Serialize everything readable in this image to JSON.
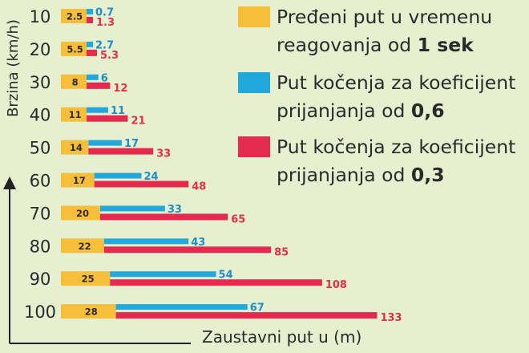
{
  "chart_data": {
    "type": "bar",
    "ylabel": "Brzina (km/h)",
    "xlabel": "Zaustavni put u (m)",
    "categories": [
      "10",
      "20",
      "30",
      "40",
      "50",
      "60",
      "70",
      "80",
      "90",
      "100"
    ],
    "series": [
      {
        "name": "Pređeni put u vremenu reagovanja od 1 sek",
        "color": "#f7be3a",
        "values": [
          "2.5",
          "5.5",
          "8",
          "11",
          "14",
          "17",
          "20",
          "22",
          "25",
          "28"
        ]
      },
      {
        "name": "Put kočenja za koeficijent prijanjanja od 0,6",
        "color": "#21a9dd",
        "values": [
          "0.7",
          "2.7",
          "6",
          "11",
          "17",
          "24",
          "33",
          "43",
          "54",
          "67"
        ]
      },
      {
        "name": "Put kočenja za koeficijent prijanjanja od 0,3",
        "color": "#e52a4f",
        "values": [
          "1.3",
          "5.3",
          "12",
          "21",
          "33",
          "48",
          "65",
          "85",
          "108",
          "133"
        ]
      }
    ]
  },
  "legend": {
    "reaction": {
      "main": "Pređeni put u vremenu reagovanja od ",
      "bold": "1 sek"
    },
    "braking_06": {
      "main": "Put kočenja za koeficijent prijanjanja od ",
      "bold": "0,6"
    },
    "braking_03": {
      "main": "Put kočenja za koeficijent prijanjanja od ",
      "bold": "0,3"
    }
  }
}
